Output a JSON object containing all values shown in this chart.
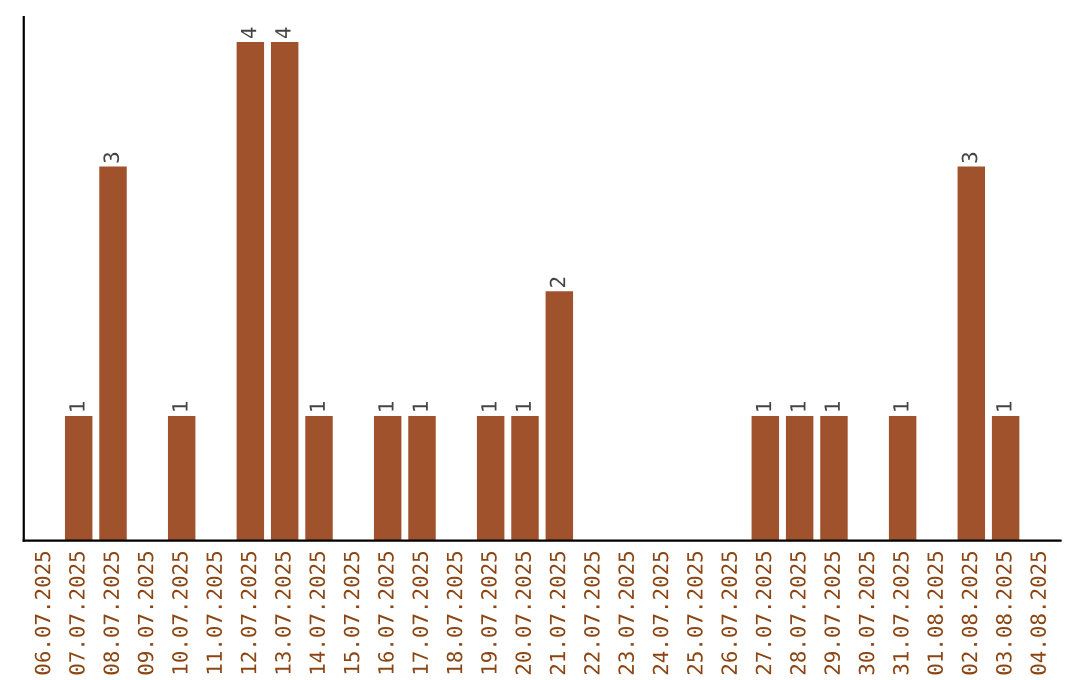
{
  "chart_data": {
    "type": "bar",
    "categories": [
      "06.07.2025",
      "07.07.2025",
      "08.07.2025",
      "09.07.2025",
      "10.07.2025",
      "11.07.2025",
      "12.07.2025",
      "13.07.2025",
      "14.07.2025",
      "15.07.2025",
      "16.07.2025",
      "17.07.2025",
      "18.07.2025",
      "19.07.2025",
      "20.07.2025",
      "21.07.2025",
      "22.07.2025",
      "23.07.2025",
      "24.07.2025",
      "25.07.2025",
      "26.07.2025",
      "27.07.2025",
      "28.07.2025",
      "29.07.2025",
      "30.07.2025",
      "31.07.2025",
      "01.08.2025",
      "02.08.2025",
      "03.08.2025",
      "04.08.2025"
    ],
    "values": [
      0,
      1,
      3,
      0,
      1,
      0,
      4,
      4,
      1,
      0,
      1,
      1,
      0,
      1,
      1,
      2,
      0,
      0,
      0,
      0,
      0,
      1,
      1,
      1,
      0,
      1,
      0,
      3,
      1,
      0
    ],
    "value_labels": [
      null,
      "1",
      "3",
      null,
      "1",
      null,
      "4",
      "4",
      "1",
      null,
      "1",
      "1",
      null,
      "1",
      "1",
      "2",
      null,
      null,
      null,
      null,
      null,
      "1",
      "1",
      "1",
      null,
      "1",
      null,
      "3",
      "1",
      null
    ],
    "color": "#a0522d",
    "ylim": [
      0,
      4.2
    ],
    "tick_labels": "x",
    "grid": false
  }
}
